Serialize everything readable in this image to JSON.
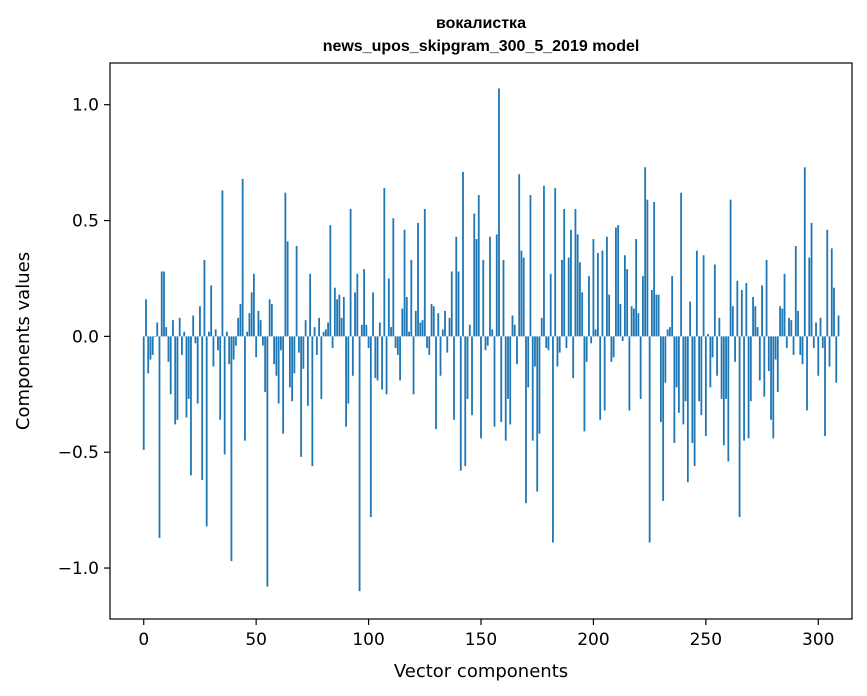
{
  "chart_data": {
    "type": "bar",
    "title_lines": [
      "вокалистка",
      "news_upos_skipgram_300_5_2019 model"
    ],
    "xlabel": "Vector components",
    "ylabel": "Components values",
    "xlim": [
      -15,
      315
    ],
    "ylim": [
      -1.22,
      1.18
    ],
    "xticks": [
      0,
      50,
      100,
      150,
      200,
      250,
      300
    ],
    "yticks": [
      -1.0,
      -0.5,
      0.0,
      0.5,
      1.0
    ],
    "ytick_labels": [
      "−1.0",
      "−0.5",
      "0.0",
      "0.5",
      "1.0"
    ],
    "bar_color": "#1f77b4",
    "grid": false,
    "values": [
      -0.49,
      0.16,
      -0.16,
      -0.1,
      -0.08,
      0.0,
      0.06,
      -0.87,
      0.28,
      0.28,
      0.04,
      -0.11,
      -0.25,
      0.07,
      -0.38,
      -0.36,
      0.08,
      -0.08,
      0.02,
      -0.35,
      -0.27,
      -0.6,
      0.09,
      -0.03,
      -0.29,
      0.13,
      -0.62,
      0.33,
      -0.82,
      0.02,
      0.22,
      -0.13,
      0.03,
      -0.06,
      -0.36,
      0.63,
      -0.51,
      0.02,
      -0.12,
      -0.97,
      -0.1,
      -0.04,
      0.08,
      0.14,
      0.68,
      -0.45,
      0.02,
      0.1,
      0.19,
      0.27,
      -0.09,
      0.11,
      0.07,
      -0.04,
      -0.24,
      -1.08,
      0.16,
      0.14,
      -0.12,
      -0.17,
      -0.29,
      -0.06,
      -0.42,
      0.62,
      0.41,
      -0.22,
      -0.28,
      -0.16,
      0.39,
      -0.07,
      -0.52,
      -0.14,
      0.07,
      -0.3,
      0.27,
      -0.56,
      0.04,
      -0.08,
      0.08,
      -0.27,
      0.02,
      0.03,
      0.06,
      0.48,
      -0.05,
      0.21,
      0.16,
      0.18,
      0.08,
      0.17,
      -0.39,
      -0.29,
      0.55,
      -0.17,
      0.19,
      0.27,
      -1.1,
      0.05,
      0.29,
      0.05,
      -0.05,
      -0.78,
      0.19,
      -0.18,
      -0.19,
      0.06,
      -0.23,
      0.64,
      -0.25,
      0.25,
      0.04,
      0.51,
      -0.05,
      -0.08,
      -0.19,
      0.12,
      0.46,
      0.17,
      0.02,
      0.33,
      -0.25,
      0.11,
      0.49,
      0.06,
      0.07,
      0.55,
      -0.05,
      -0.08,
      0.14,
      0.13,
      -0.4,
      0.1,
      -0.17,
      0.03,
      0.11,
      -0.07,
      0.08,
      0.28,
      -0.36,
      0.43,
      0.28,
      -0.58,
      0.71,
      -0.56,
      -0.27,
      0.05,
      -0.34,
      0.53,
      0.42,
      0.61,
      -0.44,
      0.33,
      -0.06,
      -0.04,
      0.43,
      0.03,
      -0.39,
      0.44,
      1.07,
      -0.37,
      0.33,
      -0.45,
      -0.27,
      -0.38,
      0.09,
      0.05,
      -0.12,
      0.7,
      0.37,
      0.34,
      -0.72,
      -0.22,
      0.61,
      -0.45,
      -0.13,
      -0.67,
      -0.42,
      0.08,
      0.65,
      -0.05,
      -0.06,
      0.27,
      -0.89,
      0.64,
      -0.13,
      -0.07,
      0.33,
      0.55,
      -0.05,
      0.34,
      0.46,
      -0.18,
      0.55,
      0.44,
      0.32,
      0.19,
      -0.41,
      -0.11,
      0.26,
      -0.03,
      0.42,
      0.03,
      0.36,
      -0.36,
      0.37,
      -0.32,
      0.43,
      0.18,
      -0.11,
      -0.09,
      0.47,
      0.48,
      0.14,
      -0.02,
      0.35,
      0.29,
      -0.32,
      0.13,
      0.12,
      0.42,
      0.1,
      -0.27,
      0.26,
      0.73,
      0.59,
      -0.89,
      0.2,
      0.58,
      0.18,
      0.18,
      -0.37,
      -0.71,
      -0.2,
      0.03,
      0.04,
      0.26,
      -0.46,
      -0.22,
      -0.33,
      0.62,
      -0.38,
      -0.28,
      -0.63,
      0.15,
      -0.46,
      -0.56,
      0.37,
      -0.28,
      -0.34,
      0.35,
      -0.43,
      0.01,
      -0.22,
      -0.09,
      0.31,
      -0.17,
      0.08,
      -0.27,
      -0.47,
      -0.27,
      -0.54,
      0.59,
      0.13,
      -0.11,
      0.24,
      -0.78,
      0.2,
      -0.45,
      0.23,
      -0.44,
      -0.28,
      0.17,
      0.13,
      0.04,
      -0.19,
      0.22,
      -0.26,
      0.33,
      -0.15,
      -0.36,
      -0.44,
      -0.1,
      -0.24,
      0.13,
      0.12,
      0.27,
      -0.05,
      0.08,
      0.07,
      -0.08,
      0.39,
      0.11,
      -0.08,
      -0.12,
      0.73,
      -0.32,
      0.34,
      0.49,
      -0.05,
      0.06,
      -0.17,
      0.08,
      -0.05,
      -0.43,
      0.46,
      -0.13,
      0.38,
      0.21,
      -0.2,
      0.09
    ]
  }
}
